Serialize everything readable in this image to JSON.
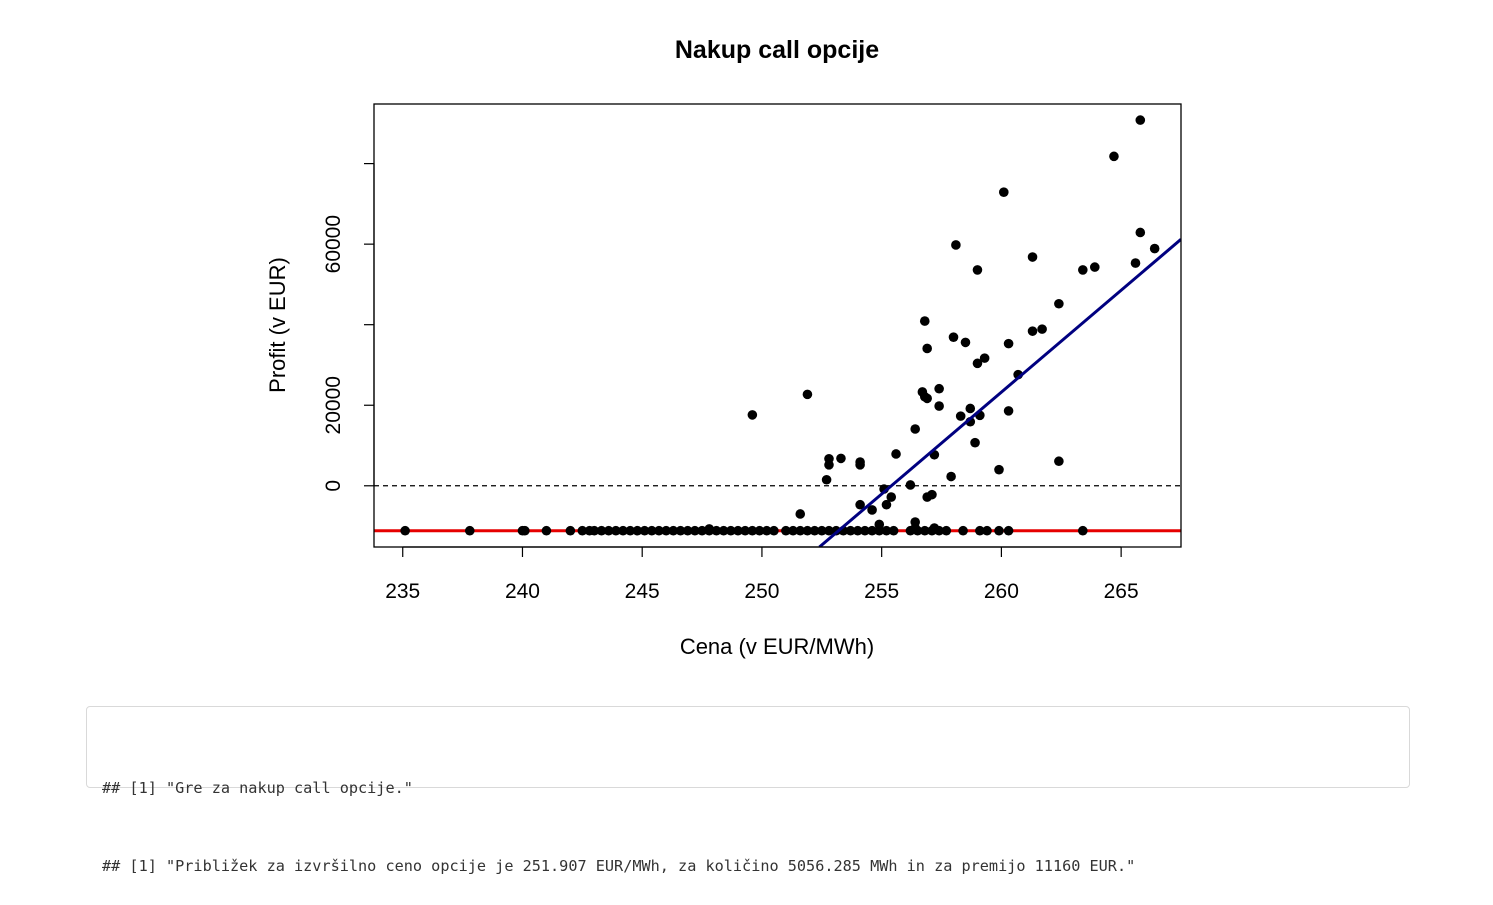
{
  "chart_data": {
    "type": "scatter",
    "title": "Nakup call opcije",
    "xlabel": "Cena (v EUR/MWh)",
    "ylabel": "Profit (v EUR)",
    "xlim": [
      233.8,
      267.5
    ],
    "ylim": [
      -15200,
      94800
    ],
    "x_ticks": [
      235,
      240,
      245,
      250,
      255,
      260,
      265
    ],
    "x_tick_labels": [
      "235",
      "240",
      "245",
      "250",
      "255",
      "260",
      "265"
    ],
    "y_ticks": [
      0,
      20000,
      40000,
      60000,
      80000
    ],
    "y_tick_labels": [
      "0",
      "20000",
      "",
      "60000",
      ""
    ],
    "hlines": [
      {
        "name": "zero-line",
        "y": 0,
        "color": "#000000",
        "style": "dashed"
      },
      {
        "name": "premium-line",
        "y": -11160,
        "color": "#e60000",
        "style": "solid"
      }
    ],
    "fit_line": {
      "name": "regression-line",
      "color": "#000080",
      "x": [
        252.4,
        267.5
      ],
      "y": [
        -15200,
        61200
      ]
    },
    "points": [
      [
        235.1,
        -11160
      ],
      [
        237.8,
        -11160
      ],
      [
        240.0,
        -11160
      ],
      [
        240.1,
        -11160
      ],
      [
        241.0,
        -11160
      ],
      [
        242.0,
        -11160
      ],
      [
        242.5,
        -11160
      ],
      [
        242.8,
        -11160
      ],
      [
        243.0,
        -11160
      ],
      [
        243.3,
        -11160
      ],
      [
        243.6,
        -11160
      ],
      [
        243.9,
        -11160
      ],
      [
        244.2,
        -11160
      ],
      [
        244.5,
        -11160
      ],
      [
        244.8,
        -11160
      ],
      [
        245.1,
        -11160
      ],
      [
        245.4,
        -11160
      ],
      [
        245.7,
        -11160
      ],
      [
        246.0,
        -11160
      ],
      [
        246.3,
        -11160
      ],
      [
        246.6,
        -11160
      ],
      [
        246.9,
        -11160
      ],
      [
        247.2,
        -11160
      ],
      [
        247.5,
        -11160
      ],
      [
        247.8,
        -11160
      ],
      [
        248.1,
        -11160
      ],
      [
        248.4,
        -11160
      ],
      [
        248.7,
        -11160
      ],
      [
        249.0,
        -11160
      ],
      [
        249.3,
        -11160
      ],
      [
        249.6,
        -11160
      ],
      [
        249.9,
        -11160
      ],
      [
        250.2,
        -11160
      ],
      [
        250.5,
        -11160
      ],
      [
        251.0,
        -11160
      ],
      [
        251.3,
        -11160
      ],
      [
        251.6,
        -11160
      ],
      [
        251.9,
        -11160
      ],
      [
        252.2,
        -11160
      ],
      [
        252.5,
        -11160
      ],
      [
        252.8,
        -11160
      ],
      [
        253.1,
        -11160
      ],
      [
        253.4,
        -11160
      ],
      [
        253.7,
        -11160
      ],
      [
        254.0,
        -11160
      ],
      [
        254.3,
        -11160
      ],
      [
        254.6,
        -11160
      ],
      [
        254.9,
        -11160
      ],
      [
        255.2,
        -11160
      ],
      [
        255.5,
        -11160
      ],
      [
        256.2,
        -11160
      ],
      [
        256.5,
        -11160
      ],
      [
        256.8,
        -11160
      ],
      [
        257.1,
        -11160
      ],
      [
        257.4,
        -11160
      ],
      [
        257.7,
        -11160
      ],
      [
        258.4,
        -11160
      ],
      [
        259.1,
        -11160
      ],
      [
        259.4,
        -11160
      ],
      [
        259.9,
        -11160
      ],
      [
        260.3,
        -11160
      ],
      [
        263.4,
        -11160
      ],
      [
        247.8,
        -10700
      ],
      [
        256.4,
        -10500
      ],
      [
        257.2,
        -10500
      ],
      [
        256.4,
        -9000
      ],
      [
        254.9,
        -9600
      ],
      [
        251.6,
        -7000
      ],
      [
        254.6,
        -6000
      ],
      [
        254.1,
        -4700
      ],
      [
        255.2,
        -4700
      ],
      [
        255.4,
        -2800
      ],
      [
        256.9,
        -2800
      ],
      [
        257.1,
        -2200
      ],
      [
        255.1,
        -800
      ],
      [
        256.2,
        200
      ],
      [
        252.7,
        1500
      ],
      [
        257.9,
        2300
      ],
      [
        259.9,
        4000
      ],
      [
        252.8,
        5200
      ],
      [
        254.1,
        5200
      ],
      [
        252.8,
        6700
      ],
      [
        253.3,
        6800
      ],
      [
        254.1,
        5900
      ],
      [
        255.6,
        7900
      ],
      [
        257.2,
        7700
      ],
      [
        262.4,
        6100
      ],
      [
        258.9,
        10700
      ],
      [
        256.4,
        14100
      ],
      [
        258.7,
        15900
      ],
      [
        259.1,
        17500
      ],
      [
        258.3,
        17300
      ],
      [
        260.3,
        18600
      ],
      [
        249.6,
        17600
      ],
      [
        251.9,
        22700
      ],
      [
        257.4,
        19800
      ],
      [
        258.7,
        19200
      ],
      [
        256.7,
        23300
      ],
      [
        256.8,
        22100
      ],
      [
        256.9,
        21700
      ],
      [
        257.4,
        24100
      ],
      [
        260.7,
        27600
      ],
      [
        259.0,
        30400
      ],
      [
        259.3,
        31700
      ],
      [
        256.9,
        34100
      ],
      [
        258.5,
        35600
      ],
      [
        258.0,
        36900
      ],
      [
        260.3,
        35300
      ],
      [
        261.3,
        38400
      ],
      [
        261.7,
        38900
      ],
      [
        256.8,
        40900
      ],
      [
        262.4,
        45200
      ],
      [
        263.4,
        53600
      ],
      [
        263.9,
        54300
      ],
      [
        265.6,
        55300
      ],
      [
        259.0,
        53600
      ],
      [
        258.1,
        59800
      ],
      [
        261.3,
        56800
      ],
      [
        265.8,
        62900
      ],
      [
        266.4,
        58900
      ],
      [
        260.1,
        72900
      ],
      [
        264.7,
        81800
      ],
      [
        265.8,
        90800
      ]
    ]
  },
  "output": {
    "lines": [
      "## [1] \"Gre za nakup call opcije.\"",
      "## [1] \"Približek za izvršilno ceno opcije je 251.907 EUR/MWh, za količino 5056.285 MWh in za premijo 11160 EUR.\""
    ]
  }
}
